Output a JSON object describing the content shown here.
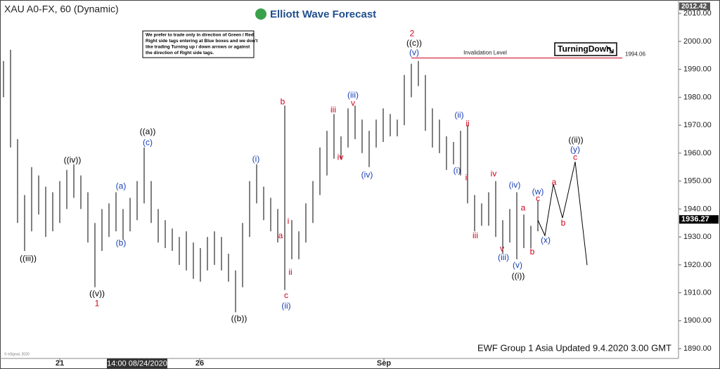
{
  "chart_data": {
    "type": "price-bars",
    "title": "XAU A0-FX, 60 (Dynamic)",
    "brand": "Elliott Wave Forecast",
    "note": [
      "We prefer to trade only in direction of Green / Red",
      "Right side tags entering at Blue boxes and we don't",
      "like trading Turning up / down arrows or against",
      "the direction of Right side tags."
    ],
    "footer": "EWF Group 1 Asia Updated 9.4.2020 3.00 GMT",
    "copyright": "© eSignal, 2020",
    "bar_color": "#000000",
    "high": [
      1993,
      1997,
      1965,
      1945,
      1955,
      1952,
      1948,
      1946,
      1950,
      1954,
      1956,
      1952,
      1946,
      1935,
      1940,
      1942,
      1946,
      1940,
      1944,
      1950,
      1962,
      1950,
      1940,
      1936,
      1933,
      1930,
      1932,
      1928,
      1926,
      1930,
      1932,
      1930,
      1924,
      1918,
      1935,
      1950,
      1956,
      1948,
      1944,
      1940,
      1977,
      1936,
      1932,
      1942,
      1950,
      1962,
      1968,
      1974,
      1966,
      1976,
      1977,
      1972,
      1968,
      1972,
      1976,
      1974,
      1972,
      1988,
      1992,
      1993,
      1988,
      1976,
      1972,
      1966,
      1964,
      1968,
      1970,
      1945,
      1942,
      1946,
      1950,
      1936,
      1940,
      1946,
      1938,
      1934,
      1943
    ],
    "low": [
      1980,
      1962,
      1935,
      1925,
      1932,
      1938,
      1930,
      1932,
      1935,
      1940,
      1944,
      1940,
      1928,
      1912,
      1925,
      1930,
      1932,
      1929,
      1932,
      1936,
      1942,
      1935,
      1928,
      1926,
      1925,
      1920,
      1918,
      1915,
      1914,
      1918,
      1920,
      1918,
      1914,
      1903,
      1912,
      1930,
      1942,
      1936,
      1932,
      1928,
      1911,
      1922,
      1922,
      1928,
      1935,
      1945,
      1952,
      1958,
      1958,
      1962,
      1965,
      1960,
      1955,
      1962,
      1964,
      1966,
      1966,
      1970,
      1980,
      1984,
      1968,
      1962,
      1960,
      1954,
      1956,
      1952,
      1942,
      1932,
      1934,
      1934,
      1930,
      1924,
      1928,
      1922,
      1926,
      1926,
      1932
    ],
    "ylim": [
      1886.5,
      2012.8
    ],
    "yticks": [
      {
        "value": 1890,
        "label": "1890.00"
      },
      {
        "value": 1900,
        "label": "1900.00"
      },
      {
        "value": 1910,
        "label": "1910.00"
      },
      {
        "value": 1920,
        "label": "1920.00"
      },
      {
        "value": 1930,
        "label": "1930.00"
      },
      {
        "value": 1940,
        "label": "1940.00"
      },
      {
        "value": 1950,
        "label": "1950.00"
      },
      {
        "value": 1960,
        "label": "1960.00"
      },
      {
        "value": 1970,
        "label": "1970.00"
      },
      {
        "value": 1980,
        "label": "1980.00"
      },
      {
        "value": 1990,
        "label": "1990.00"
      },
      {
        "value": 2000,
        "label": "2000.00"
      },
      {
        "value": 2010,
        "label": "2010.00"
      }
    ],
    "xticks": [
      {
        "value": 8,
        "label": "21"
      },
      {
        "value": 27.9,
        "label": "26"
      },
      {
        "value": 54.1,
        "label": "Sep"
      }
    ],
    "crosshair": {
      "value": 19,
      "label": "14:00 08/24/2020"
    },
    "high_marker": 2012.42,
    "last_price": 1936.27,
    "invalidation": {
      "value": 1994.06,
      "label": "Invalidation Level"
    },
    "signal": "TurningDown",
    "projection": {
      "x": [
        76,
        77,
        78.2,
        79.5,
        81.3,
        83
      ],
      "y": [
        1936,
        1930.5,
        1948.9,
        1936.8,
        1956.9,
        1919.9
      ]
    },
    "annotations": [
      {
        "text": "((iii))",
        "color": "#000000",
        "x": 3.5,
        "y": 1922.2
      },
      {
        "text": "((iv))",
        "color": "#000000",
        "x": 9.8,
        "y": 1957.4
      },
      {
        "text": "((v))",
        "color": "#000000",
        "x": 13.3,
        "y": 1909.6
      },
      {
        "text": "1",
        "color": "#d0021b",
        "x": 13.3,
        "y": 1906.1
      },
      {
        "text": "(a)",
        "color": "#1a3fb5",
        "x": 16.7,
        "y": 1948.1
      },
      {
        "text": "(b)",
        "color": "#1a3fb5",
        "x": 16.7,
        "y": 1927.7
      },
      {
        "text": "((a))",
        "color": "#000000",
        "x": 20.5,
        "y": 1967.5
      },
      {
        "text": "(c)",
        "color": "#1a3fb5",
        "x": 20.5,
        "y": 1963.7
      },
      {
        "text": "((b))",
        "color": "#000000",
        "x": 33.5,
        "y": 1900.6
      },
      {
        "text": "(i)",
        "color": "#1a3fb5",
        "x": 35.9,
        "y": 1957.7
      },
      {
        "text": "b",
        "color": "#d0021b",
        "x": 39.7,
        "y": 1978.3
      },
      {
        "text": "a",
        "color": "#d0021b",
        "x": 39.4,
        "y": 1930.3
      },
      {
        "text": "i",
        "color": "#d0021b",
        "x": 40.5,
        "y": 1935.5
      },
      {
        "text": "ii",
        "color": "#d0021b",
        "x": 40.8,
        "y": 1917.2
      },
      {
        "text": "c",
        "color": "#d0021b",
        "x": 40.2,
        "y": 1908.9
      },
      {
        "text": "(ii)",
        "color": "#1a3fb5",
        "x": 40.2,
        "y": 1905.1
      },
      {
        "text": "iii",
        "color": "#d0021b",
        "x": 46.9,
        "y": 1975.3
      },
      {
        "text": "iv",
        "color": "#d0021b",
        "x": 47.9,
        "y": 1958.4
      },
      {
        "text": "(iii)",
        "color": "#1a3fb5",
        "x": 49.7,
        "y": 1980.6
      },
      {
        "text": "v",
        "color": "#d0021b",
        "x": 49.7,
        "y": 1977.8
      },
      {
        "text": "(iv)",
        "color": "#1a3fb5",
        "x": 51.7,
        "y": 1952.1
      },
      {
        "text": "2",
        "color": "#d0021b",
        "x": 58.1,
        "y": 2002.7
      },
      {
        "text": "((c))",
        "color": "#000000",
        "x": 58.4,
        "y": 1999.2
      },
      {
        "text": "(v)",
        "color": "#1a3fb5",
        "x": 58.4,
        "y": 1995.9
      },
      {
        "text": "(ii)",
        "color": "#1a3fb5",
        "x": 64.8,
        "y": 1973.5
      },
      {
        "text": "ii",
        "color": "#d0021b",
        "x": 66,
        "y": 1970.5
      },
      {
        "text": "(i)",
        "color": "#1a3fb5",
        "x": 64.5,
        "y": 1953.6
      },
      {
        "text": "i",
        "color": "#d0021b",
        "x": 65.8,
        "y": 1951.1
      },
      {
        "text": "iii",
        "color": "#d0021b",
        "x": 67.1,
        "y": 1930.3
      },
      {
        "text": "iv",
        "color": "#d0021b",
        "x": 69.7,
        "y": 1952.4
      },
      {
        "text": "v",
        "color": "#d0021b",
        "x": 70.9,
        "y": 1925.7
      },
      {
        "text": "(iii)",
        "color": "#1a3fb5",
        "x": 71.1,
        "y": 1922.5
      },
      {
        "text": "(iv)",
        "color": "#1a3fb5",
        "x": 72.7,
        "y": 1948.4
      },
      {
        "text": "(v)",
        "color": "#1a3fb5",
        "x": 73.1,
        "y": 1919.7
      },
      {
        "text": "((i))",
        "color": "#000000",
        "x": 73.2,
        "y": 1915.9
      },
      {
        "text": "a",
        "color": "#d0021b",
        "x": 73.9,
        "y": 1940.3
      },
      {
        "text": "c",
        "color": "#d0021b",
        "x": 76,
        "y": 1943.6
      },
      {
        "text": "(w)",
        "color": "#1a3fb5",
        "x": 76,
        "y": 1946.1
      },
      {
        "text": "b",
        "color": "#d0021b",
        "x": 75.2,
        "y": 1924.5
      },
      {
        "text": "(x)",
        "color": "#1a3fb5",
        "x": 77.1,
        "y": 1928.7
      },
      {
        "text": "a",
        "color": "#d0021b",
        "x": 78.3,
        "y": 1949.4
      },
      {
        "text": "b",
        "color": "#d0021b",
        "x": 79.6,
        "y": 1934.8
      },
      {
        "text": "((ii))",
        "color": "#000000",
        "x": 81.4,
        "y": 1964.6
      },
      {
        "text": "(y)",
        "color": "#1a3fb5",
        "x": 81.3,
        "y": 1961.2
      },
      {
        "text": "c",
        "color": "#d0021b",
        "x": 81.3,
        "y": 1958.4
      }
    ]
  }
}
